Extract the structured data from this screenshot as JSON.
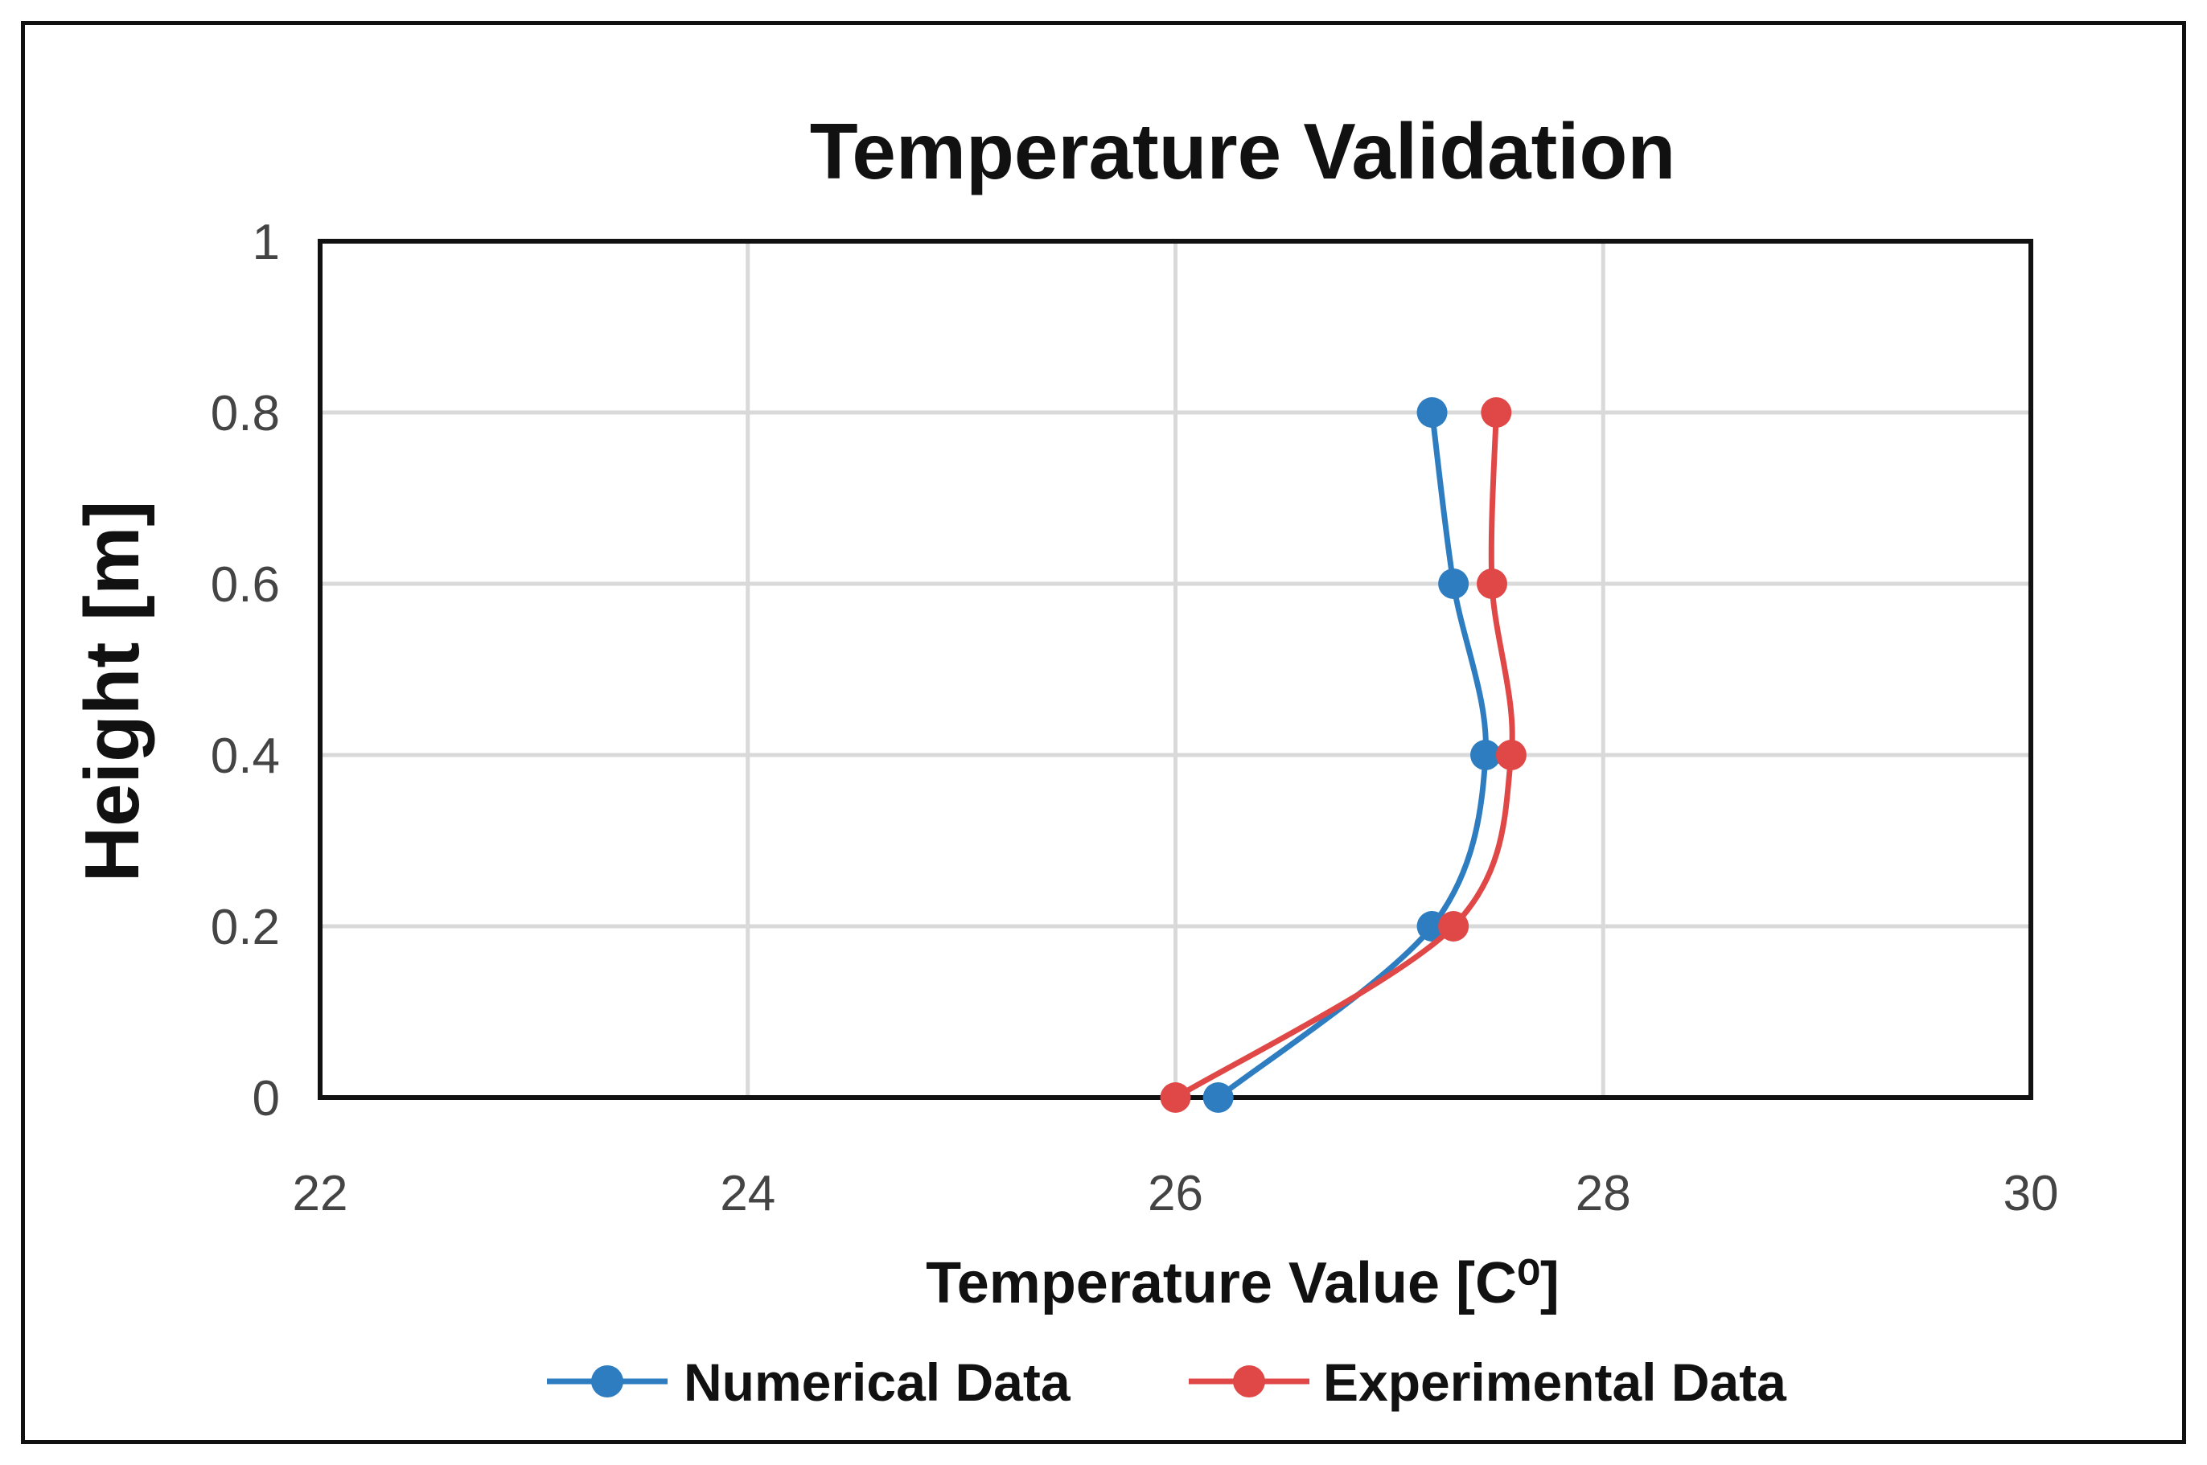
{
  "chart_data": {
    "type": "line",
    "title": "Temperature Validation",
    "xlabel": "Temperature Value [C⁰]",
    "ylabel": "Height [m]",
    "xlim": [
      22,
      30
    ],
    "ylim": [
      0,
      1
    ],
    "xticks": [
      "22",
      "24",
      "26",
      "28",
      "30"
    ],
    "yticks": [
      "0",
      "0.2",
      "0.4",
      "0.6",
      "0.8",
      "1"
    ],
    "grid": true,
    "legend_position": "bottom",
    "series": [
      {
        "name": "Numerical Data",
        "color": "#2E7DC1",
        "points": [
          {
            "x": 26.2,
            "y": 0
          },
          {
            "x": 27.2,
            "y": 0.2
          },
          {
            "x": 27.45,
            "y": 0.4
          },
          {
            "x": 27.3,
            "y": 0.6
          },
          {
            "x": 27.2,
            "y": 0.8
          }
        ]
      },
      {
        "name": "Experimental Data",
        "color": "#E04848",
        "points": [
          {
            "x": 26.0,
            "y": 0
          },
          {
            "x": 27.3,
            "y": 0.2
          },
          {
            "x": 27.57,
            "y": 0.4
          },
          {
            "x": 27.48,
            "y": 0.6
          },
          {
            "x": 27.5,
            "y": 0.8
          }
        ]
      }
    ]
  }
}
